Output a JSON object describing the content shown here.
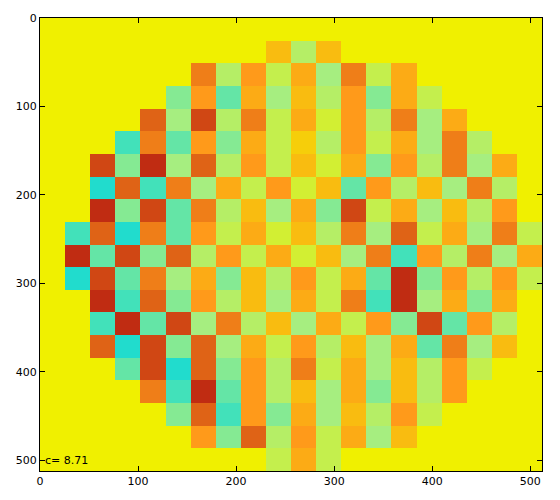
{
  "chart_data": {
    "type": "heatmap",
    "annotation": "c= 8.71",
    "x": [
      12.8,
      38.4,
      64,
      89.6,
      115.2,
      140.8,
      166.4,
      192,
      217.6,
      243.2,
      268.8,
      294.4,
      320,
      345.6,
      371.2,
      396.8,
      422.4,
      448,
      473.6,
      499.2
    ],
    "y": [
      12.8,
      38.4,
      64,
      89.6,
      115.2,
      140.8,
      166.4,
      192,
      217.6,
      243.2,
      268.8,
      294.4,
      320,
      345.6,
      371.2,
      396.8,
      422.4,
      448,
      473.6,
      499.2
    ],
    "values": [
      [
        0,
        0,
        0,
        0,
        0,
        0,
        0,
        0,
        0,
        0,
        0,
        0,
        0,
        0,
        0,
        0,
        0,
        0,
        0,
        0
      ],
      [
        0,
        0,
        0,
        0,
        0,
        0,
        0,
        0,
        0,
        0.3,
        -0.4,
        0.3,
        0,
        0,
        0,
        0,
        0,
        0,
        0,
        0
      ],
      [
        0,
        0,
        0,
        0,
        0,
        0,
        0.6,
        -0.4,
        0.5,
        -0.3,
        0.4,
        -0.5,
        0.6,
        -0.3,
        0.4,
        0,
        0,
        0,
        0,
        0
      ],
      [
        0,
        0,
        0,
        0,
        0,
        -0.6,
        0.5,
        -0.7,
        0.4,
        -0.5,
        0.3,
        -0.4,
        0.5,
        -0.6,
        0.4,
        -0.3,
        0,
        0,
        0,
        0
      ],
      [
        0,
        0,
        0,
        0,
        0.7,
        -0.5,
        0.8,
        -0.4,
        0.6,
        -0.3,
        0.4,
        -0.2,
        0.5,
        -0.4,
        0.6,
        -0.5,
        0.4,
        0,
        0,
        0
      ],
      [
        0,
        0,
        0,
        -0.8,
        0.6,
        -0.7,
        0.5,
        -0.6,
        0.4,
        -0.3,
        0.2,
        -0.4,
        0.5,
        -0.3,
        0.4,
        -0.5,
        0.6,
        -0.4,
        0,
        0
      ],
      [
        0,
        0,
        0.8,
        -0.6,
        0.9,
        -0.5,
        0.7,
        -0.4,
        0.5,
        -0.3,
        0.3,
        -0.2,
        0.4,
        -0.6,
        0.5,
        -0.4,
        0.6,
        -0.5,
        0.4,
        0
      ],
      [
        0,
        0,
        -0.9,
        0.7,
        -0.8,
        0.6,
        -0.5,
        0.4,
        -0.3,
        0.5,
        -0.2,
        0.3,
        -0.7,
        0.5,
        -0.4,
        0.3,
        -0.5,
        0.6,
        -0.4,
        0
      ],
      [
        0,
        0,
        0.9,
        -0.6,
        0.8,
        -0.7,
        0.6,
        -0.4,
        0.3,
        -0.5,
        0.4,
        -0.6,
        0.8,
        -0.3,
        0.4,
        -0.5,
        0.3,
        -0.4,
        0.5,
        0
      ],
      [
        0,
        -0.8,
        0.7,
        -0.9,
        0.6,
        -0.7,
        0.5,
        -0.3,
        0.4,
        -0.2,
        0.3,
        -0.4,
        0.6,
        -0.5,
        0.7,
        -0.3,
        0.4,
        -0.5,
        0.6,
        -0.3
      ],
      [
        0,
        0.9,
        -0.7,
        0.8,
        -0.6,
        0.7,
        -0.4,
        0.5,
        -0.3,
        0.4,
        -0.2,
        0.3,
        -0.5,
        0.6,
        -0.8,
        0.5,
        -0.4,
        0.6,
        -0.5,
        0.4
      ],
      [
        0,
        -0.9,
        0.8,
        -0.7,
        0.6,
        -0.5,
        0.4,
        -0.6,
        0.3,
        -0.4,
        0.5,
        -0.3,
        0.4,
        -0.7,
        0.9,
        -0.6,
        0.5,
        -0.4,
        0.5,
        -0.3
      ],
      [
        0,
        0,
        0.9,
        -0.8,
        0.7,
        -0.6,
        0.5,
        -0.4,
        0.3,
        -0.5,
        0.4,
        -0.3,
        0.6,
        -0.8,
        0.9,
        -0.5,
        0.4,
        -0.6,
        0.4,
        0
      ],
      [
        0,
        0,
        -0.8,
        0.9,
        -0.7,
        0.8,
        -0.5,
        0.6,
        -0.4,
        0.3,
        -0.5,
        0.4,
        -0.3,
        0.5,
        -0.6,
        0.8,
        -0.7,
        0.5,
        -0.4,
        0
      ],
      [
        0,
        0,
        0.7,
        -0.9,
        0.8,
        -0.6,
        0.7,
        -0.5,
        0.4,
        -0.3,
        0.5,
        -0.4,
        0.3,
        -0.5,
        0.4,
        -0.7,
        0.6,
        -0.5,
        0.3,
        0
      ],
      [
        0,
        0,
        0,
        -0.7,
        0.8,
        -0.9,
        0.7,
        -0.6,
        0.5,
        -0.4,
        0.6,
        -0.3,
        0.4,
        -0.5,
        0.3,
        -0.4,
        0.5,
        -0.3,
        0,
        0
      ],
      [
        0,
        0,
        0,
        0,
        0.6,
        -0.8,
        0.9,
        -0.7,
        0.5,
        -0.4,
        0.3,
        -0.5,
        0.4,
        -0.6,
        0.3,
        -0.4,
        0.5,
        0,
        0,
        0
      ],
      [
        0,
        0,
        0,
        0,
        0,
        -0.6,
        0.7,
        -0.8,
        0.5,
        -0.6,
        0.4,
        -0.5,
        0.3,
        -0.4,
        0.5,
        -0.3,
        0,
        0,
        0,
        0
      ],
      [
        0,
        0,
        0,
        0,
        0,
        0,
        0.5,
        -0.6,
        0.7,
        -0.4,
        0.5,
        -0.3,
        0.4,
        -0.5,
        0.3,
        0,
        0,
        0,
        0,
        0
      ],
      [
        0,
        0,
        0,
        0,
        0,
        0,
        0,
        0,
        0,
        -0.3,
        0.4,
        -0.3,
        0,
        0,
        0,
        0,
        0,
        0,
        0,
        0
      ]
    ],
    "zlim": [
      -1,
      1
    ],
    "xlim": [
      0,
      512
    ],
    "ylim": [
      512,
      0
    ],
    "xticks": [
      0,
      100,
      200,
      300,
      400,
      500
    ],
    "yticks": [
      0,
      100,
      200,
      300,
      400,
      500
    ],
    "grid": false
  }
}
